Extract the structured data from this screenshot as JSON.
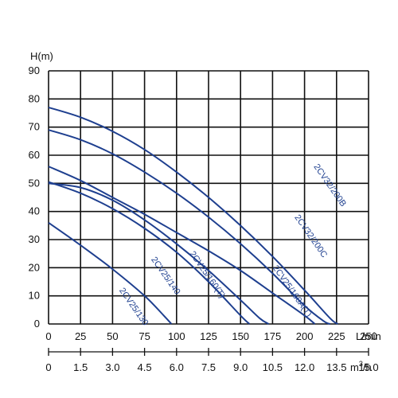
{
  "chart_data": {
    "type": "line",
    "ylabel": "H(m)",
    "xlabel": "L/min",
    "secondary_xlabel_prefix": "m",
    "secondary_xlabel_sup": "3",
    "secondary_xlabel_suffix": "/h",
    "xlim": [
      0,
      250
    ],
    "ylim": [
      0,
      90
    ],
    "x_ticks": [
      "0",
      "25",
      "50",
      "75",
      "100",
      "125",
      "150",
      "175",
      "200",
      "225",
      "250"
    ],
    "y_ticks": [
      "0",
      "10",
      "20",
      "30",
      "40",
      "50",
      "60",
      "70",
      "80",
      "90"
    ],
    "secondary_x_ticks": [
      "0",
      "1.5",
      "3.0",
      "4.5",
      "6.0",
      "7.5",
      "9.0",
      "10.5",
      "12.0",
      "13.5",
      "15.0"
    ],
    "grid": true,
    "curve_color": "#1e3f8f",
    "series": [
      {
        "name": "2CV32/200B",
        "x": [
          0,
          25,
          50,
          75,
          100,
          125,
          150,
          175,
          200,
          220,
          226
        ],
        "y": [
          77,
          73.5,
          68.5,
          62,
          54,
          45,
          35,
          24,
          12,
          2,
          0
        ]
      },
      {
        "name": "2CV32/200C",
        "x": [
          0,
          25,
          50,
          75,
          100,
          125,
          150,
          175,
          200,
          215,
          220
        ],
        "y": [
          69,
          65.5,
          60.5,
          54,
          46.5,
          38,
          28.5,
          18,
          6.5,
          1,
          0
        ]
      },
      {
        "name": "2CV25/160A(T)",
        "x": [
          0,
          25,
          50,
          75,
          100,
          125,
          150,
          175,
          200,
          208
        ],
        "y": [
          56,
          51,
          45,
          39,
          32.5,
          26,
          19,
          11,
          3,
          0
        ]
      },
      {
        "name": "2CV25/160(T)",
        "x": [
          0,
          25,
          50,
          75,
          100,
          125,
          150,
          165,
          172
        ],
        "y": [
          50,
          48.5,
          44,
          37,
          28.5,
          19,
          8.5,
          2,
          0
        ]
      },
      {
        "name": "2CV25/140",
        "x": [
          0,
          25,
          50,
          75,
          100,
          125,
          150,
          157
        ],
        "y": [
          50.5,
          46.5,
          41,
          34,
          25.5,
          15,
          3,
          0
        ]
      },
      {
        "name": "2CV25/130",
        "x": [
          0,
          25,
          50,
          75,
          90,
          96
        ],
        "y": [
          36,
          28,
          19.5,
          10,
          3,
          0
        ]
      }
    ]
  }
}
